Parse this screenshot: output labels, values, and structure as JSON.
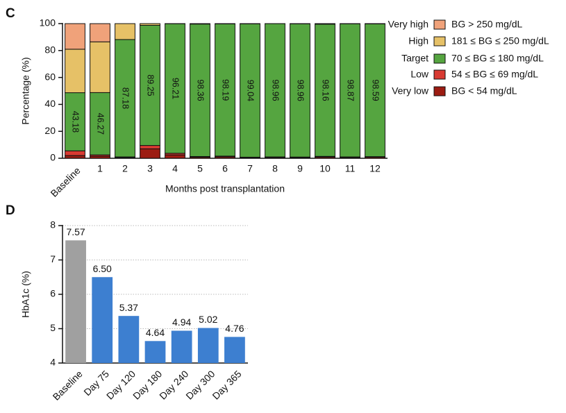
{
  "chart_data": [
    {
      "type": "stacked_bar",
      "panel_label": "C",
      "xlabel": "Months post transplantation",
      "ylabel": "Percentage (%)",
      "categories": [
        "Baseline",
        "1",
        "2",
        "3",
        "4",
        "5",
        "6",
        "7",
        "8",
        "9",
        "10",
        "11",
        "12"
      ],
      "ylim": [
        0,
        100
      ],
      "yticks": [
        0,
        20,
        40,
        60,
        80,
        100
      ],
      "series": [
        {
          "name": "Very low",
          "description": "BG < 54 mg/dL",
          "color": "#9c1c12",
          "values": [
            2,
            1.5,
            0.5,
            7,
            2.5,
            0.8,
            1,
            0.5,
            0.6,
            0.5,
            0.9,
            0.6,
            0.8
          ]
        },
        {
          "name": "Low",
          "description": "54 ≤ BG ≤ 69 mg/dL",
          "color": "#d83a32",
          "values": [
            3.5,
            1,
            0.5,
            2.5,
            1.2,
            0.5,
            0.6,
            0.3,
            0.4,
            0.4,
            0.5,
            0.4,
            0.4
          ]
        },
        {
          "name": "Target",
          "description": "70 ≤ BG ≤ 180 mg/dL",
          "color": "#55a540",
          "values": [
            43.18,
            46.27,
            87.18,
            89.25,
            96.21,
            98.36,
            98.19,
            99.04,
            98.96,
            98.96,
            98.16,
            98.87,
            98.59
          ],
          "show_values": true
        },
        {
          "name": "High",
          "description": "181 ≤ BG ≤ 250 mg/dL",
          "color": "#e6c167",
          "values": [
            32.3,
            37.7,
            11.8,
            1.25,
            0.1,
            0.34,
            0.2,
            0.16,
            0.04,
            0.14,
            0.44,
            0.13,
            0.21
          ]
        },
        {
          "name": "Very high",
          "description": "BG > 250 mg/dL",
          "color": "#f0a27a",
          "values": [
            19,
            13.5,
            0,
            0,
            0,
            0,
            0,
            0,
            0,
            0,
            0,
            0,
            0
          ]
        }
      ]
    },
    {
      "type": "bar",
      "panel_label": "D",
      "ylabel": "HbA1c (%)",
      "categories": [
        "Baseline",
        "Day 75",
        "Day 120",
        "Day 180",
        "Day 240",
        "Day 300",
        "Day 365"
      ],
      "values": [
        7.57,
        6.5,
        5.37,
        4.64,
        4.94,
        5.02,
        4.76
      ],
      "value_labels": [
        "7.57",
        "6.50",
        "5.37",
        "4.64",
        "4.94",
        "5.02",
        "4.76"
      ],
      "colors": [
        "#a0a0a0",
        "#3d7fd0",
        "#3d7fd0",
        "#3d7fd0",
        "#3d7fd0",
        "#3d7fd0",
        "#3d7fd0"
      ],
      "ylim": [
        4,
        8
      ],
      "yticks": [
        4,
        5,
        6,
        7,
        8
      ],
      "grid": true
    }
  ]
}
